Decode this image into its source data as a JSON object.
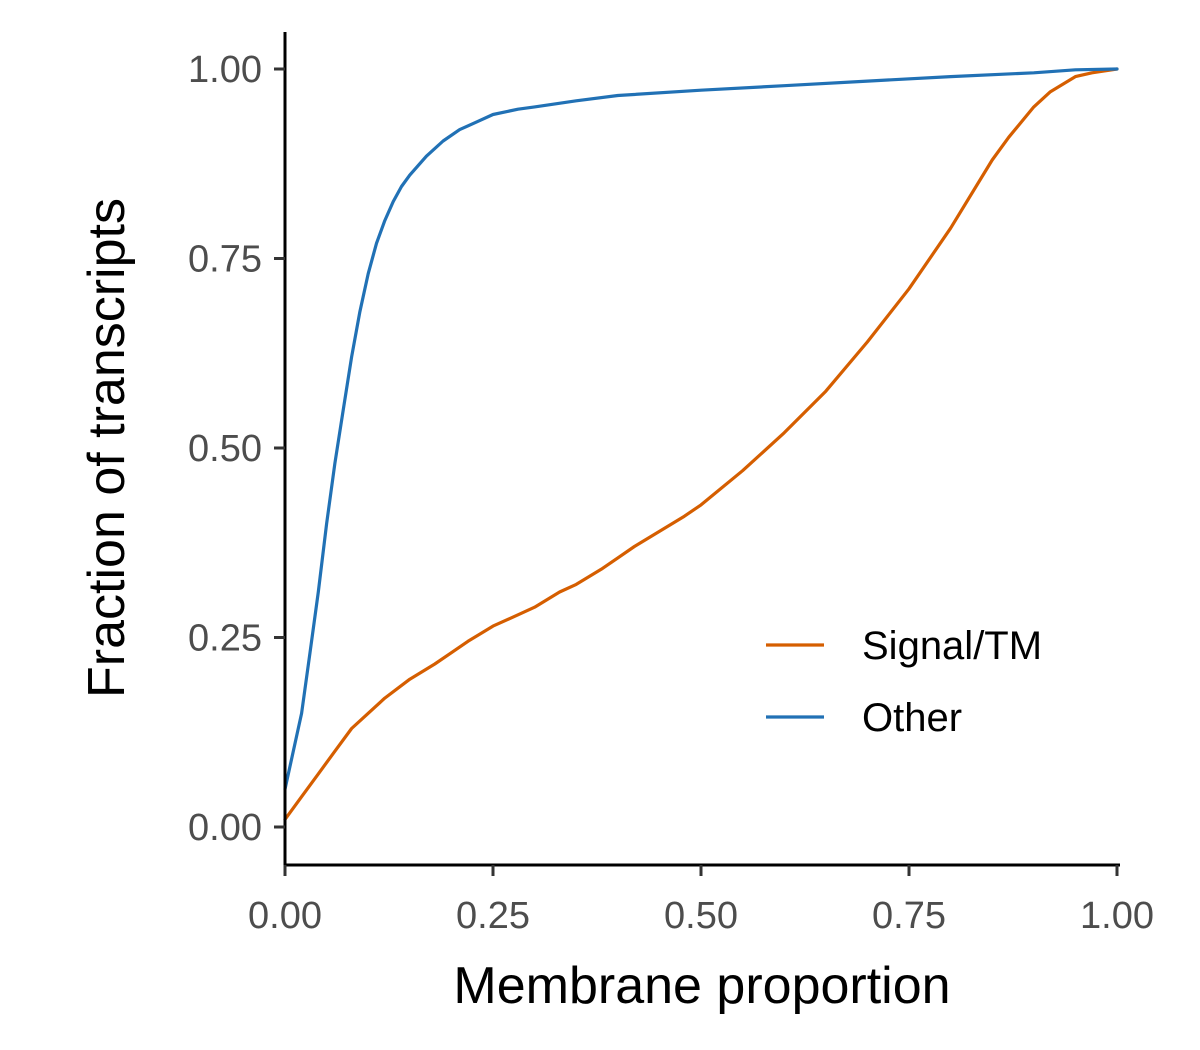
{
  "chart_data": {
    "type": "line",
    "title": "",
    "xlabel": "Membrane proportion",
    "ylabel": "Fraction of transcripts",
    "xlim": [
      0,
      1
    ],
    "ylim": [
      0,
      1
    ],
    "x_ticks": [
      "0.00",
      "0.25",
      "0.50",
      "0.75",
      "1.00"
    ],
    "y_ticks": [
      "0.00",
      "0.25",
      "0.50",
      "0.75",
      "1.00"
    ],
    "x_tick_values": [
      0,
      0.25,
      0.5,
      0.75,
      1
    ],
    "y_tick_values": [
      0,
      0.25,
      0.5,
      0.75,
      1
    ],
    "grid": false,
    "legend_position": "bottom-right",
    "series": [
      {
        "name": "Signal/TM",
        "color": "#D55E00",
        "x": [
          0,
          0.02,
          0.04,
          0.06,
          0.08,
          0.1,
          0.12,
          0.15,
          0.18,
          0.2,
          0.22,
          0.25,
          0.28,
          0.3,
          0.33,
          0.35,
          0.38,
          0.4,
          0.42,
          0.45,
          0.48,
          0.5,
          0.55,
          0.6,
          0.65,
          0.7,
          0.75,
          0.8,
          0.85,
          0.87,
          0.9,
          0.92,
          0.95,
          0.97,
          1.0
        ],
        "y": [
          0.01,
          0.04,
          0.07,
          0.1,
          0.13,
          0.15,
          0.17,
          0.195,
          0.215,
          0.23,
          0.245,
          0.265,
          0.28,
          0.29,
          0.31,
          0.32,
          0.34,
          0.355,
          0.37,
          0.39,
          0.41,
          0.425,
          0.47,
          0.52,
          0.575,
          0.64,
          0.71,
          0.79,
          0.88,
          0.91,
          0.95,
          0.97,
          0.99,
          0.995,
          1.0
        ]
      },
      {
        "name": "Other",
        "color": "#2171B5",
        "x": [
          0,
          0.01,
          0.02,
          0.03,
          0.04,
          0.05,
          0.06,
          0.07,
          0.08,
          0.09,
          0.1,
          0.11,
          0.12,
          0.13,
          0.14,
          0.15,
          0.17,
          0.19,
          0.21,
          0.23,
          0.25,
          0.28,
          0.3,
          0.35,
          0.4,
          0.5,
          0.6,
          0.7,
          0.8,
          0.9,
          0.95,
          1.0
        ],
        "y": [
          0.05,
          0.1,
          0.15,
          0.23,
          0.31,
          0.4,
          0.48,
          0.55,
          0.62,
          0.68,
          0.73,
          0.77,
          0.8,
          0.825,
          0.845,
          0.86,
          0.885,
          0.905,
          0.92,
          0.93,
          0.94,
          0.947,
          0.95,
          0.958,
          0.965,
          0.972,
          0.978,
          0.984,
          0.99,
          0.995,
          0.999,
          1.0
        ]
      }
    ]
  }
}
